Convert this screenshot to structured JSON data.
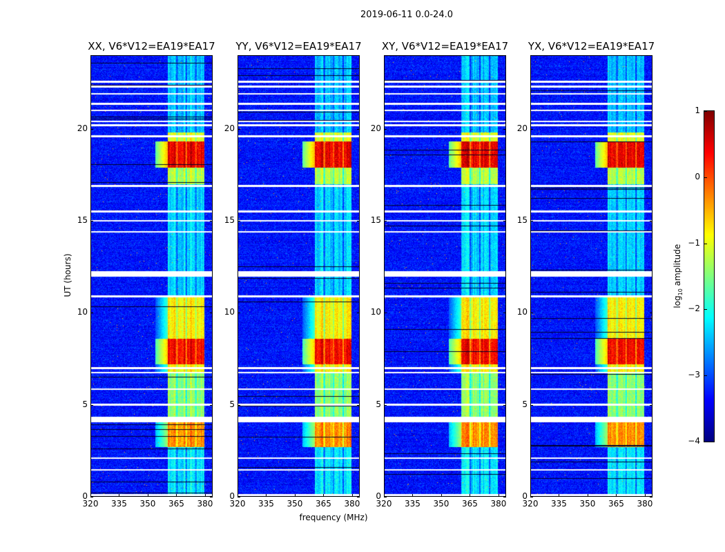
{
  "figure": {
    "suptitle": "2019-06-11 0.0-24.0",
    "xlabel": "frequency (MHz)",
    "ylabel": "UT (hours)"
  },
  "colorbar": {
    "label_prefix": "log",
    "label_sub": "10",
    "label_suffix": " amplitude",
    "ticks": [
      "1",
      "0",
      "−1",
      "−2",
      "−3",
      "−4"
    ],
    "tick_values": [
      1,
      0,
      -1,
      -2,
      -3,
      -4
    ],
    "clim": [
      -4,
      1
    ],
    "colormap": "jet"
  },
  "chart_data": {
    "type": "heatmap",
    "title": "2019-06-11 0.0-24.0",
    "panels": [
      {
        "title": "XX, V6*V12=EA19*EA17"
      },
      {
        "title": "YY, V6*V12=EA19*EA17"
      },
      {
        "title": "XY, V6*V12=EA19*EA17"
      },
      {
        "title": "YX, V6*V12=EA19*EA17"
      }
    ],
    "xlabel": "frequency (MHz)",
    "ylabel": "UT (hours)",
    "xlim": [
      320,
      384
    ],
    "ylim": [
      0,
      24
    ],
    "xticks": [
      320,
      335,
      350,
      365,
      380
    ],
    "yticks": [
      0,
      5,
      10,
      15,
      20
    ],
    "background_log_amplitude": -3.3,
    "rfi_band_mhz": [
      360.5,
      379.5
    ],
    "band_segments_hours_level": [
      [
        0,
        2.7,
        -2.2
      ],
      [
        2.7,
        4.1,
        -0.3
      ],
      [
        4.3,
        6.7,
        -1.4
      ],
      [
        6.8,
        7.2,
        -0.8
      ],
      [
        7.2,
        8.6,
        0.4
      ],
      [
        8.6,
        10.9,
        -0.8
      ],
      [
        10.9,
        17.0,
        -2.3
      ],
      [
        17.0,
        17.9,
        -1.2
      ],
      [
        17.9,
        19.3,
        0.5
      ],
      [
        19.3,
        19.8,
        -1.0
      ],
      [
        19.8,
        24,
        -2.4
      ]
    ],
    "flagged_hours": [
      0.1,
      1.46,
      2.1,
      4.1,
      4.2,
      4.3,
      5.0,
      5.85,
      6.75,
      7.0,
      10.9,
      12.0,
      12.1,
      12.2,
      14.4,
      15.0,
      15.5,
      16.9,
      19.6,
      20.2,
      20.4,
      21.0,
      21.35,
      21.9,
      22.3,
      22.55
    ]
  }
}
